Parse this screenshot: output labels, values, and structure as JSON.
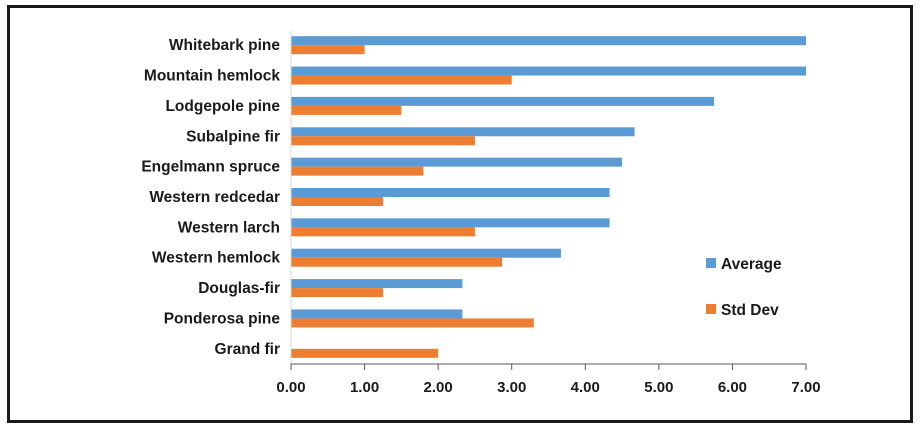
{
  "chart_data": {
    "type": "bar",
    "orientation": "horizontal",
    "title": "",
    "xlabel": "",
    "ylabel": "",
    "categories": [
      "Whitebark pine",
      "Mountain hemlock",
      "Lodgepole pine",
      "Subalpine fir",
      "Engelmann spruce",
      "Western redcedar",
      "Western larch",
      "Western hemlock",
      "Douglas-fir",
      "Ponderosa pine",
      "Grand fir"
    ],
    "series": [
      {
        "name": "Average",
        "color": "#5b9bd5",
        "values": [
          7.0,
          7.0,
          5.75,
          4.67,
          4.5,
          4.33,
          4.33,
          3.67,
          2.33,
          2.33,
          0.0
        ]
      },
      {
        "name": "Std Dev",
        "color": "#ed7d31",
        "values": [
          1.0,
          3.0,
          1.5,
          2.5,
          1.8,
          1.25,
          2.5,
          2.87,
          1.25,
          3.3,
          2.0
        ]
      }
    ],
    "xlim": [
      0,
      7
    ],
    "xticks": [
      "0.00",
      "1.00",
      "2.00",
      "3.00",
      "4.00",
      "5.00",
      "6.00",
      "7.00"
    ],
    "grid": false,
    "legend_position": "right"
  }
}
